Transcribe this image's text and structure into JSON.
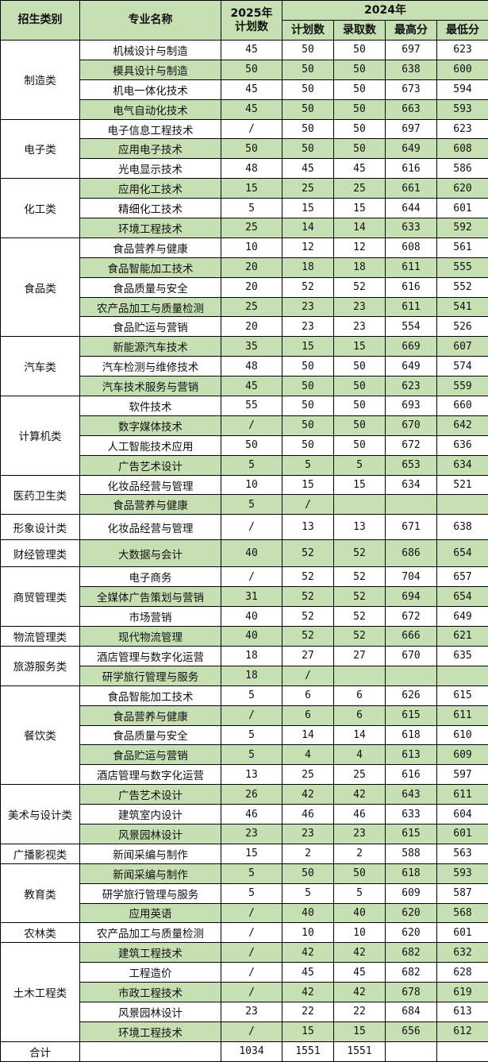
{
  "header": {
    "category": "招生类别",
    "major": "专业名称",
    "plan2025": "2025年\n计划数",
    "year2024": "2024年",
    "plan2024": "计划数",
    "admitted2024": "录取数",
    "max_score": "最高分",
    "min_score": "最低分"
  },
  "colors": {
    "shade": "#c6e0b4",
    "border": "#000000"
  },
  "groups": [
    {
      "category": "制造类",
      "majors": [
        [
          "机械设计与制造",
          "45",
          "50",
          "50",
          "697",
          "623"
        ],
        [
          "模具设计与制造",
          "50",
          "50",
          "50",
          "638",
          "600"
        ],
        [
          "机电一体化技术",
          "45",
          "50",
          "50",
          "673",
          "594"
        ],
        [
          "电气自动化技术",
          "45",
          "50",
          "50",
          "663",
          "593"
        ]
      ]
    },
    {
      "category": "电子类",
      "majors": [
        [
          "电子信息工程技术",
          "/",
          "50",
          "50",
          "697",
          "623"
        ],
        [
          "应用电子技术",
          "50",
          "50",
          "50",
          "649",
          "608"
        ],
        [
          "光电显示技术",
          "48",
          "45",
          "45",
          "616",
          "586"
        ]
      ]
    },
    {
      "category": "化工类",
      "majors": [
        [
          "应用化工技术",
          "15",
          "25",
          "25",
          "661",
          "620"
        ],
        [
          "精细化工技术",
          "5",
          "15",
          "15",
          "644",
          "601"
        ],
        [
          "环境工程技术",
          "25",
          "14",
          "14",
          "633",
          "592"
        ]
      ]
    },
    {
      "category": "食品类",
      "majors": [
        [
          "食品营养与健康",
          "10",
          "12",
          "12",
          "608",
          "561"
        ],
        [
          "食品智能加工技术",
          "20",
          "18",
          "18",
          "611",
          "555"
        ],
        [
          "食品质量与安全",
          "20",
          "52",
          "52",
          "616",
          "552"
        ],
        [
          "农产品加工与质量检测",
          "25",
          "23",
          "23",
          "611",
          "541"
        ],
        [
          "食品贮运与营销",
          "20",
          "23",
          "23",
          "554",
          "526"
        ]
      ]
    },
    {
      "category": "汽车类",
      "majors": [
        [
          "新能源汽车技术",
          "35",
          "15",
          "15",
          "669",
          "607"
        ],
        [
          "汽车检测与维修技术",
          "48",
          "50",
          "50",
          "649",
          "574"
        ],
        [
          "汽车技术服务与营销",
          "45",
          "50",
          "50",
          "623",
          "559"
        ]
      ]
    },
    {
      "category": "计算机类",
      "majors": [
        [
          "软件技术",
          "55",
          "50",
          "50",
          "693",
          "660"
        ],
        [
          "数字媒体技术",
          "/",
          "50",
          "50",
          "670",
          "642"
        ],
        [
          "人工智能技术应用",
          "50",
          "50",
          "50",
          "672",
          "636"
        ],
        [
          "广告艺术设计",
          "5",
          "5",
          "5",
          "653",
          "634"
        ]
      ]
    },
    {
      "category": "医药卫生类",
      "majors": [
        [
          "化妆品经营与管理",
          "10",
          "15",
          "15",
          "634",
          "521"
        ],
        [
          "食品营养与健康",
          "5",
          "/",
          "",
          "",
          ""
        ]
      ]
    },
    {
      "category": "形象设计类",
      "majors": [
        [
          "化妆品经营与管理",
          "/",
          "13",
          "13",
          "671",
          "638"
        ]
      ]
    },
    {
      "category": "财经管理类",
      "majors": [
        [
          "大数据与会计",
          "40",
          "52",
          "52",
          "686",
          "654"
        ]
      ]
    },
    {
      "category": "商贸管理类",
      "majors": [
        [
          "电子商务",
          "/",
          "52",
          "52",
          "704",
          "657"
        ],
        [
          "全媒体广告策划与营销",
          "31",
          "52",
          "52",
          "694",
          "654"
        ],
        [
          "市场营销",
          "40",
          "52",
          "52",
          "672",
          "649"
        ]
      ]
    },
    {
      "category": "物流管理类",
      "majors": [
        [
          "现代物流管理",
          "40",
          "52",
          "52",
          "666",
          "621"
        ]
      ]
    },
    {
      "category": "旅游服务类",
      "majors": [
        [
          "酒店管理与数字化运营",
          "18",
          "27",
          "27",
          "670",
          "635"
        ],
        [
          "研学旅行管理与服务",
          "18",
          "/",
          "",
          "",
          ""
        ]
      ]
    },
    {
      "category": "餐饮类",
      "majors": [
        [
          "食品智能加工技术",
          "5",
          "6",
          "6",
          "626",
          "615"
        ],
        [
          "食品营养与健康",
          "/",
          "6",
          "6",
          "615",
          "611"
        ],
        [
          "食品质量与安全",
          "5",
          "14",
          "14",
          "618",
          "610"
        ],
        [
          "食品贮运与营销",
          "5",
          "4",
          "4",
          "613",
          "609"
        ],
        [
          "酒店管理与数字化运营",
          "13",
          "25",
          "25",
          "616",
          "597"
        ]
      ]
    },
    {
      "category": "美术与设计类",
      "majors": [
        [
          "广告艺术设计",
          "26",
          "42",
          "42",
          "643",
          "611"
        ],
        [
          "建筑室内设计",
          "46",
          "46",
          "46",
          "633",
          "604"
        ],
        [
          "风景园林设计",
          "23",
          "23",
          "23",
          "615",
          "601"
        ]
      ]
    },
    {
      "category": "广播影视类",
      "majors": [
        [
          "新闻采编与制作",
          "15",
          "2",
          "2",
          "588",
          "563"
        ]
      ]
    },
    {
      "category": "教育类",
      "majors": [
        [
          "新闻采编与制作",
          "5",
          "50",
          "50",
          "618",
          "593"
        ],
        [
          "研学旅行管理与服务",
          "5",
          "5",
          "5",
          "609",
          "587"
        ],
        [
          "应用英语",
          "/",
          "40",
          "40",
          "620",
          "568"
        ]
      ]
    },
    {
      "category": "农林类",
      "majors": [
        [
          "农产品加工与质量检测",
          "/",
          "10",
          "10",
          "620",
          "601"
        ]
      ]
    },
    {
      "category": "土木工程类",
      "majors": [
        [
          "建筑工程技术",
          "/",
          "42",
          "42",
          "682",
          "632"
        ],
        [
          "工程造价",
          "/",
          "45",
          "45",
          "682",
          "628"
        ],
        [
          "市政工程技术",
          "/",
          "42",
          "42",
          "678",
          "619"
        ],
        [
          "风景园林设计",
          "23",
          "22",
          "22",
          "684",
          "613"
        ],
        [
          "环境工程技术",
          "/",
          "15",
          "15",
          "656",
          "612"
        ]
      ]
    }
  ],
  "total": {
    "label": "合计",
    "major": "",
    "plan2025": "1034",
    "plan2024": "1551",
    "admitted2024": "1551",
    "max_score": "",
    "min_score": ""
  }
}
